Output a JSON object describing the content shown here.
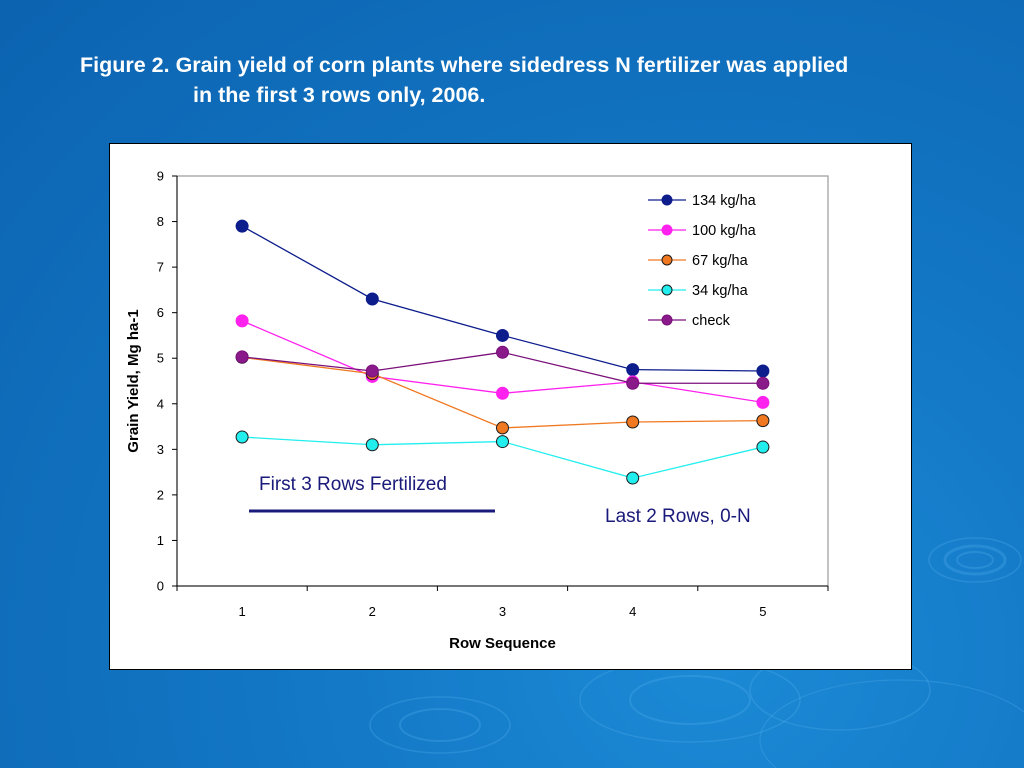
{
  "slide": {
    "title_line1": "Figure 2. Grain yield of corn plants where sidedress N fertilizer was applied",
    "title_line2": "in the first 3 rows only, 2006."
  },
  "colors": {
    "background": "#1276c4",
    "annotation": "#1a1a7a"
  },
  "chart_data": {
    "type": "line",
    "title": "",
    "xlabel": "Row Sequence",
    "ylabel": "Grain Yield, Mg ha-1",
    "categories": [
      "1",
      "2",
      "3",
      "4",
      "5"
    ],
    "ylim": [
      0,
      9
    ],
    "yticks": [
      "0",
      "1",
      "2",
      "3",
      "4",
      "5",
      "6",
      "7",
      "8",
      "9"
    ],
    "grid": false,
    "legend_position": "top-right",
    "series": [
      {
        "name": "134 kg/ha",
        "color": "#0d1d8c",
        "marker_fill": "#0d1d8c",
        "values": [
          7.9,
          6.3,
          5.5,
          4.75,
          4.72
        ]
      },
      {
        "name": "100 kg/ha",
        "color": "#ff22ee",
        "marker_fill": "#ff22ee",
        "values": [
          5.82,
          4.6,
          4.23,
          4.48,
          4.03
        ]
      },
      {
        "name": "67 kg/ha",
        "color": "#f07820",
        "marker_fill": "#f07820",
        "values": [
          5.02,
          4.66,
          3.47,
          3.6,
          3.63
        ]
      },
      {
        "name": "34 kg/ha",
        "color": "#22eeee",
        "marker_fill": "#22eeee",
        "values": [
          3.27,
          3.1,
          3.17,
          2.37,
          3.05
        ]
      },
      {
        "name": "check",
        "color": "#7a0f7a",
        "marker_fill": "#8a1a8a",
        "values": [
          5.03,
          4.72,
          5.13,
          4.45,
          4.45
        ]
      }
    ],
    "annotations": [
      {
        "text": "First 3 Rows Fertilized"
      },
      {
        "text": "Last 2 Rows, 0-N"
      }
    ]
  }
}
